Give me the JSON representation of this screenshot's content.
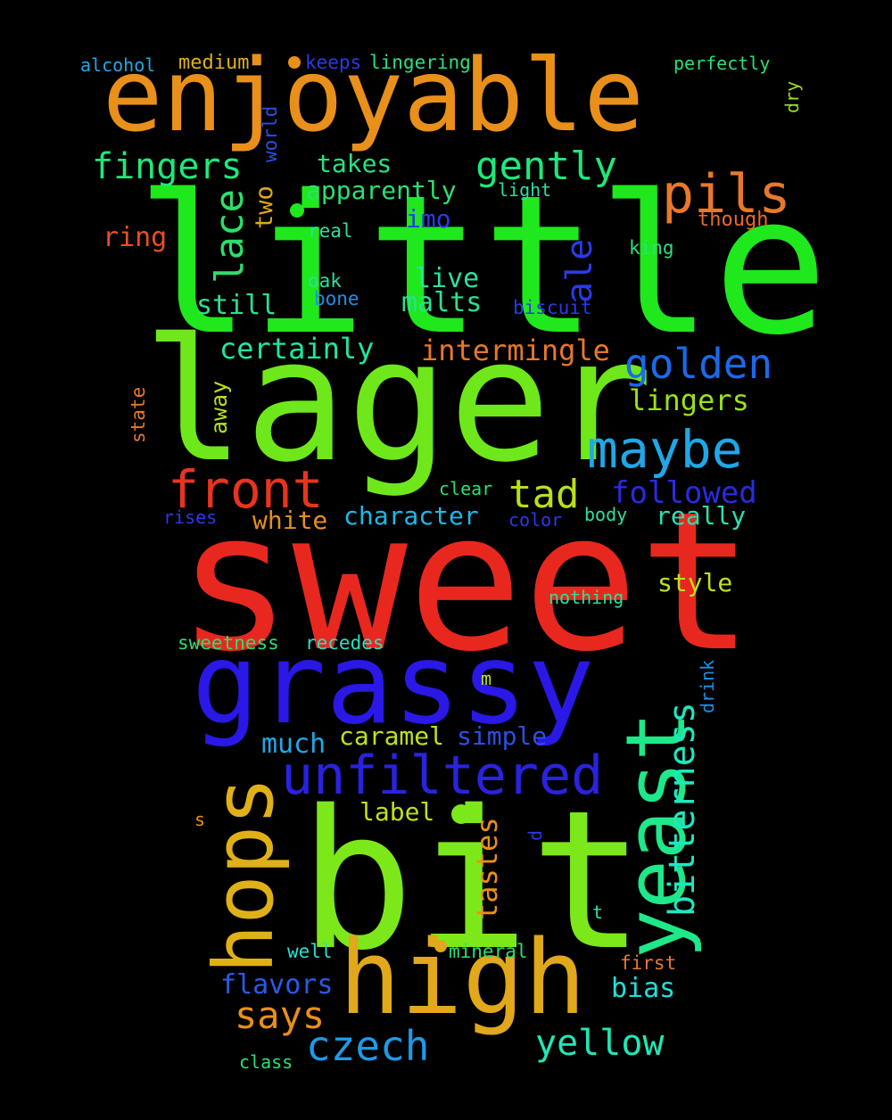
{
  "words": [
    {
      "text": "sweet",
      "color": "#e8281e"
    },
    {
      "text": "little",
      "color": "#1fe81c"
    },
    {
      "text": "lager",
      "color": "#6ee81a"
    },
    {
      "text": "bit",
      "color": "#7ce81a"
    },
    {
      "text": "grassy",
      "color": "#2a18e6"
    },
    {
      "text": "enjoyable",
      "color": "#e8901a"
    },
    {
      "text": "high",
      "color": "#e0a81a"
    },
    {
      "text": "hops",
      "color": "#e0b018"
    },
    {
      "text": "yeast",
      "color": "#1ee88a"
    },
    {
      "text": "unfiltered",
      "color": "#2a22e0"
    },
    {
      "text": "pils",
      "color": "#e8782a"
    },
    {
      "text": "front",
      "color": "#e8341e"
    },
    {
      "text": "maybe",
      "color": "#1ea8e8"
    },
    {
      "text": "golden",
      "color": "#1a6ae8"
    },
    {
      "text": "gently",
      "color": "#1ee87a"
    },
    {
      "text": "fingers",
      "color": "#1ee87a"
    },
    {
      "text": "lace",
      "color": "#2ae06a"
    },
    {
      "text": "ale",
      "color": "#2a3ae8"
    },
    {
      "text": "bitterness",
      "color": "#1ee8c0"
    },
    {
      "text": "czech",
      "color": "#1e9ae8"
    },
    {
      "text": "yellow",
      "color": "#1ee8b8"
    },
    {
      "text": "says",
      "color": "#e8901a"
    },
    {
      "text": "tad",
      "color": "#b8e01a"
    },
    {
      "text": "followed",
      "color": "#2a2ae0"
    },
    {
      "text": "apparently",
      "color": "#2ae070"
    },
    {
      "text": "certainly",
      "color": "#1ee8a0"
    },
    {
      "text": "intermingle",
      "color": "#e8782a"
    },
    {
      "text": "lingers",
      "color": "#9ae01a"
    },
    {
      "text": "takes",
      "color": "#2ae080"
    },
    {
      "text": "still",
      "color": "#2ae090"
    },
    {
      "text": "malts",
      "color": "#2ae090"
    },
    {
      "text": "live",
      "color": "#2ae0a0"
    },
    {
      "text": "imo",
      "color": "#2a3ae8"
    },
    {
      "text": "ring",
      "color": "#e8501e"
    },
    {
      "text": "two",
      "color": "#e0a81a"
    },
    {
      "text": "character",
      "color": "#1eb8e8"
    },
    {
      "text": "white",
      "color": "#e8901a"
    },
    {
      "text": "really",
      "color": "#2ae0b0"
    },
    {
      "text": "style",
      "color": "#c0e01a"
    },
    {
      "text": "much",
      "color": "#1ea8e8"
    },
    {
      "text": "caramel",
      "color": "#c0e01a"
    },
    {
      "text": "simple",
      "color": "#2a50e8"
    },
    {
      "text": "label",
      "color": "#c0e01a"
    },
    {
      "text": "tastes",
      "color": "#e8901a"
    },
    {
      "text": "flavors",
      "color": "#2a5ae8"
    },
    {
      "text": "bias",
      "color": "#1ee0d8"
    },
    {
      "text": "away",
      "color": "#b8e01a"
    },
    {
      "text": "world",
      "color": "#2a50e8"
    },
    {
      "text": "keeps",
      "color": "#2a3ae8"
    },
    {
      "text": "lingering",
      "color": "#2ae080"
    },
    {
      "text": "medium",
      "color": "#e0b01a"
    },
    {
      "text": "alcohol",
      "color": "#1ea8e8"
    },
    {
      "text": "perfectly",
      "color": "#2ae070"
    },
    {
      "text": "dry",
      "color": "#9ae01a"
    },
    {
      "text": "light",
      "color": "#2ae0a0"
    },
    {
      "text": "though",
      "color": "#e86a2a"
    },
    {
      "text": "real",
      "color": "#2ae0a0"
    },
    {
      "text": "king",
      "color": "#2ae080"
    },
    {
      "text": "oak",
      "color": "#2ae0a0"
    },
    {
      "text": "bone",
      "color": "#1e90e8"
    },
    {
      "text": "biscuit",
      "color": "#2a3ae8"
    },
    {
      "text": "state",
      "color": "#e8782a"
    },
    {
      "text": "clear",
      "color": "#2ae070"
    },
    {
      "text": "rises",
      "color": "#2a3ae8"
    },
    {
      "text": "color",
      "color": "#2a3ae8"
    },
    {
      "text": "body",
      "color": "#2ae0a0"
    },
    {
      "text": "nothing",
      "color": "#2ae0a0"
    },
    {
      "text": "sweetness",
      "color": "#2ae070"
    },
    {
      "text": "recedes",
      "color": "#2ae0c0"
    },
    {
      "text": "drink",
      "color": "#1e90e8"
    },
    {
      "text": "m",
      "color": "#c0e01a"
    },
    {
      "text": "s",
      "color": "#e8901a"
    },
    {
      "text": "d",
      "color": "#2a3ae8"
    },
    {
      "text": "t",
      "color": "#2ae0b0"
    },
    {
      "text": "well",
      "color": "#2ae0d0"
    },
    {
      "text": "mineral",
      "color": "#2ae070"
    },
    {
      "text": "first",
      "color": "#e8782a"
    },
    {
      "text": "class",
      "color": "#2ae070"
    }
  ]
}
